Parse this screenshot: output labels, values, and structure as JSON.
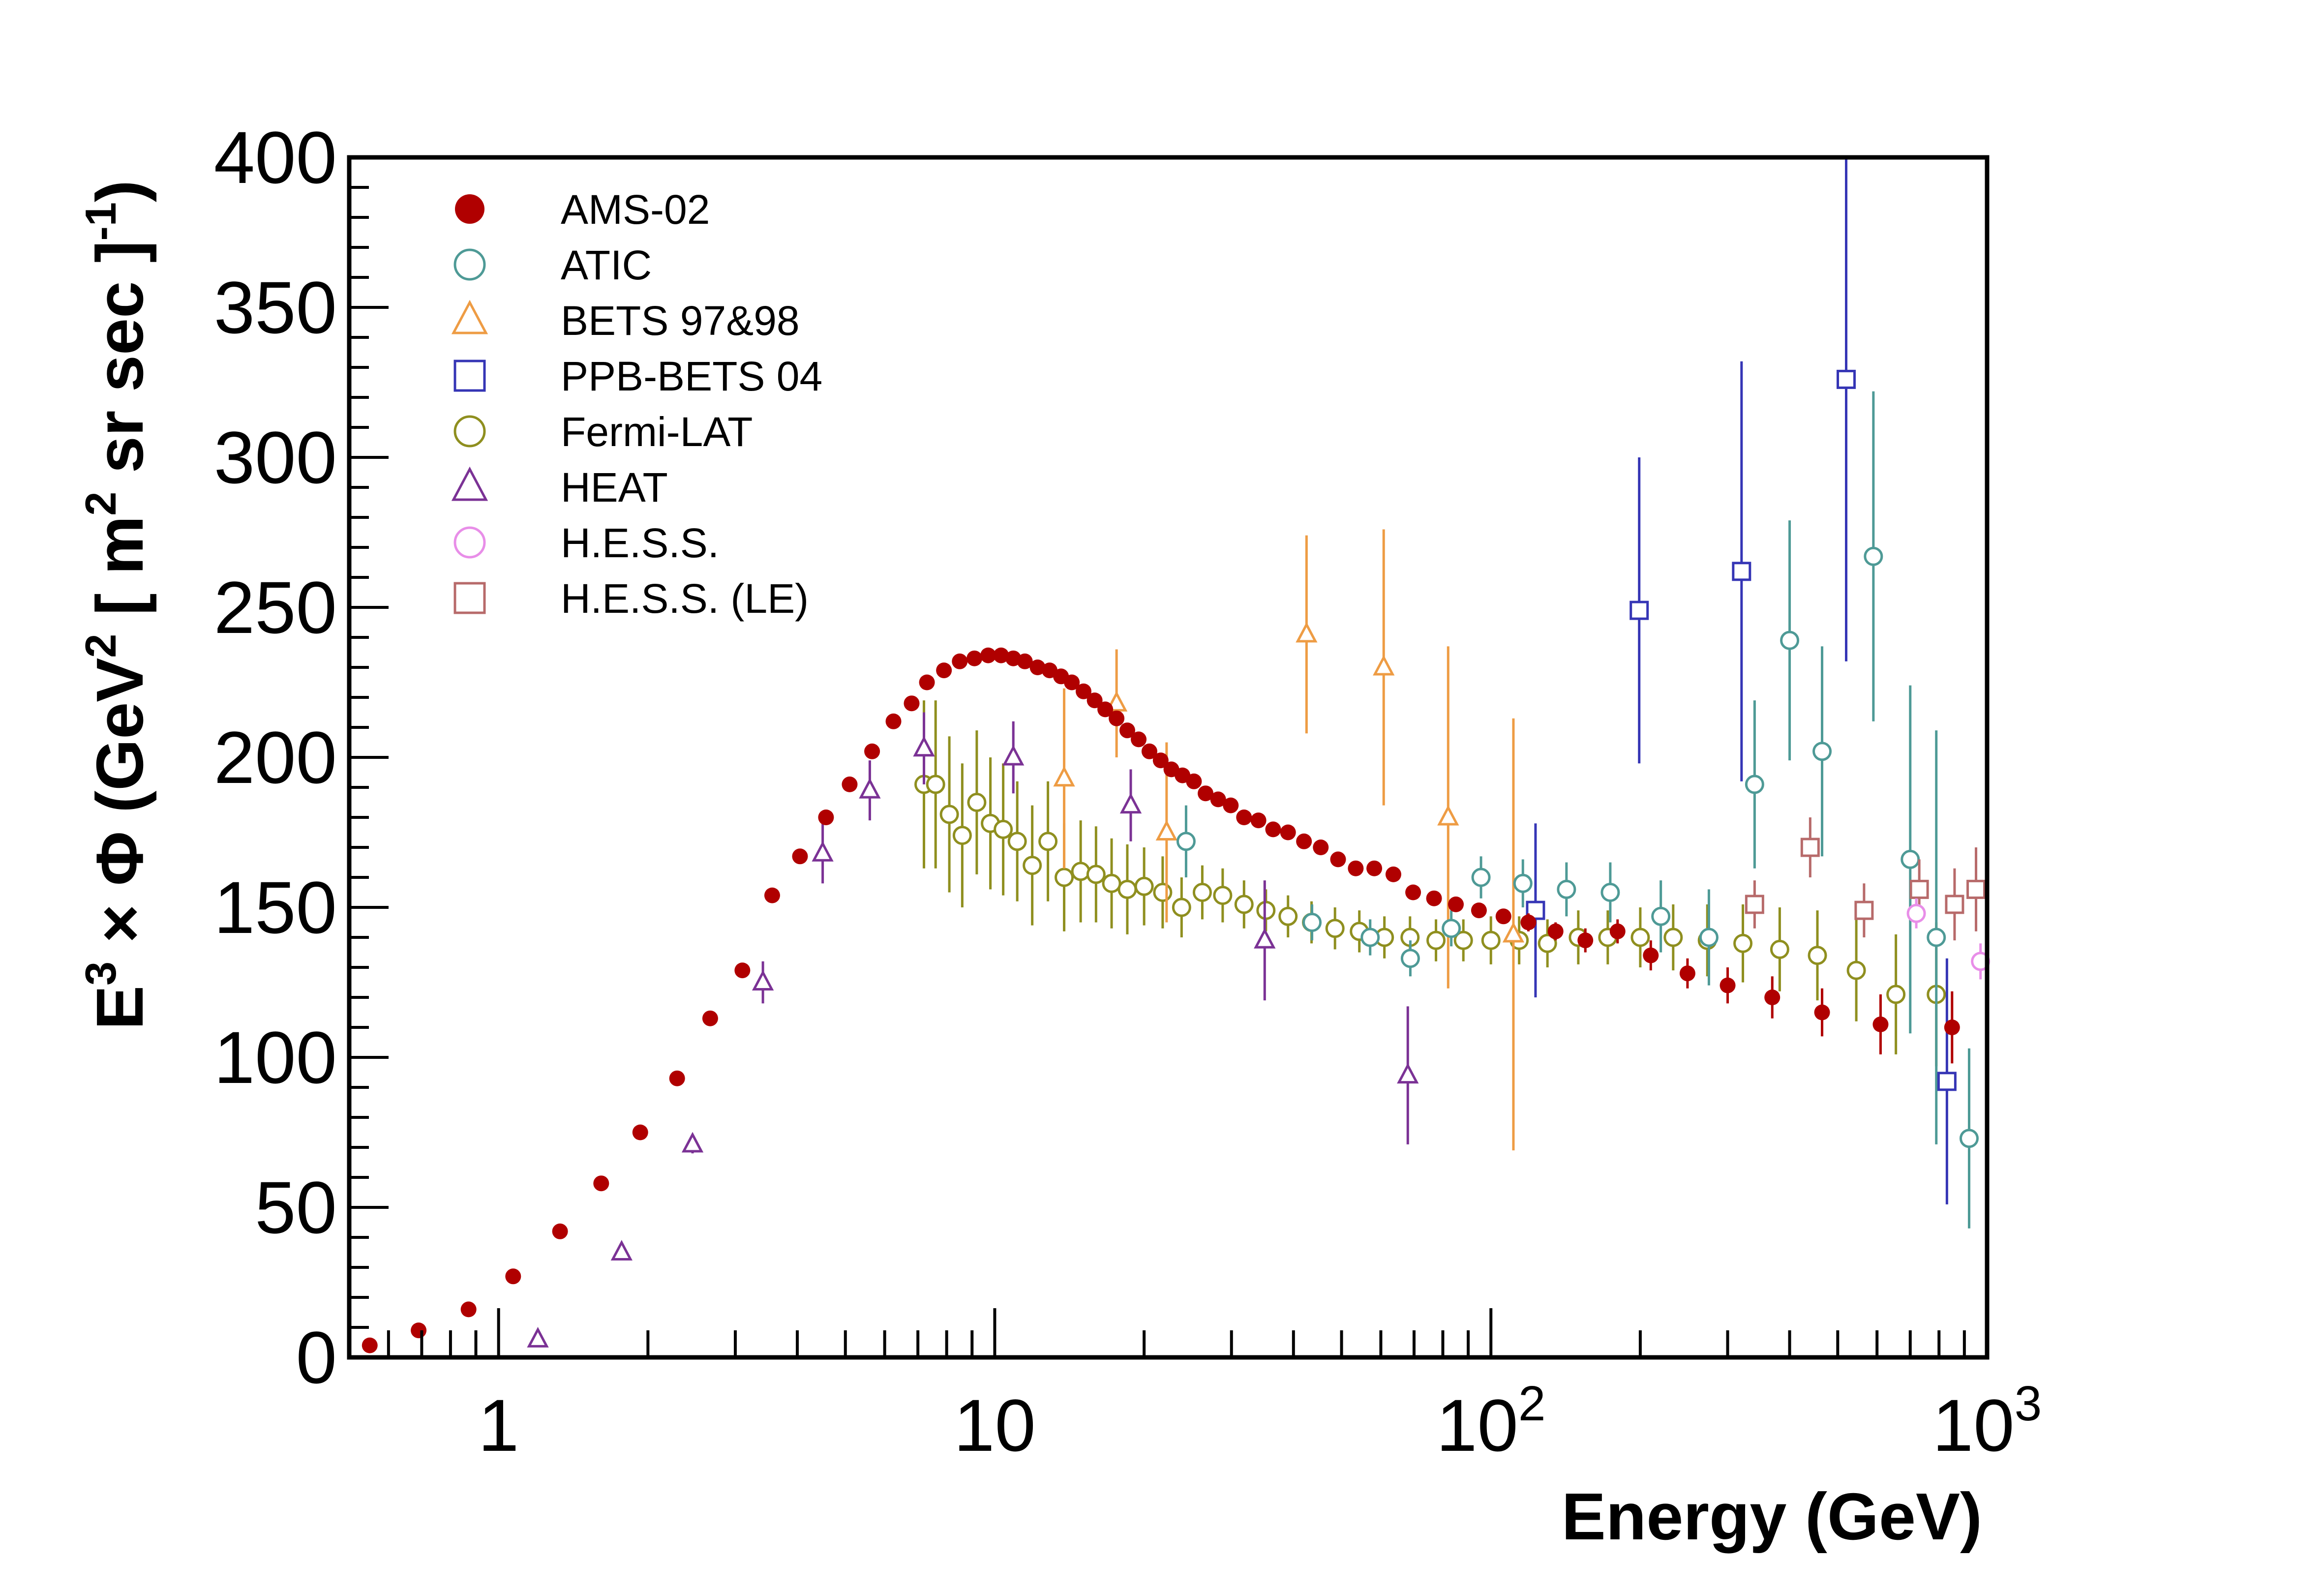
{
  "chart_data": {
    "type": "scatter",
    "xscale": "log",
    "xlim": [
      0.5,
      1000
    ],
    "ylim": [
      0,
      400
    ],
    "xlabel": "Energy (GeV)",
    "ylabel": "E3 × Φ (GeV2 [ m2 sr sec ]-1)",
    "ylabel_parts": {
      "e": "E",
      "three": "3",
      "times_phi": " × Φ (GeV",
      "two_a": "2",
      "bracket": " [ m",
      "two_b": "2",
      "rest": " sr sec ]",
      "minus_one": "-1",
      "close": ")"
    },
    "y_ticks": [
      "0",
      "50",
      "100",
      "150",
      "200",
      "250",
      "300",
      "350",
      "400"
    ],
    "x_ticks": [
      {
        "value": 1,
        "base": "1",
        "exp": ""
      },
      {
        "value": 10,
        "base": "10",
        "exp": ""
      },
      {
        "value": 100,
        "base": "10",
        "exp": "2"
      },
      {
        "value": 1000,
        "base": "10",
        "exp": "3"
      }
    ],
    "legend_position": "top-left",
    "series": [
      {
        "name": "AMS-02",
        "marker": "filled-circle",
        "color": "#b00000",
        "points": [
          [
            0.55,
            4,
            1
          ],
          [
            0.69,
            9,
            1
          ],
          [
            0.87,
            16,
            1
          ],
          [
            1.07,
            27,
            1
          ],
          [
            1.33,
            42,
            1
          ],
          [
            1.61,
            58,
            1
          ],
          [
            1.93,
            75,
            1
          ],
          [
            2.29,
            93,
            1
          ],
          [
            2.67,
            113,
            1
          ],
          [
            3.1,
            129,
            1
          ],
          [
            3.56,
            154,
            1
          ],
          [
            4.05,
            167,
            2
          ],
          [
            4.57,
            180,
            2
          ],
          [
            5.1,
            191,
            2
          ],
          [
            5.66,
            202,
            2
          ],
          [
            6.25,
            212,
            2
          ],
          [
            6.8,
            218,
            2
          ],
          [
            7.3,
            225,
            2
          ],
          [
            7.9,
            229,
            2
          ],
          [
            8.5,
            232,
            2
          ],
          [
            9.1,
            233,
            2
          ],
          [
            9.7,
            234,
            2
          ],
          [
            10.3,
            234,
            2
          ],
          [
            10.9,
            233,
            2
          ],
          [
            11.5,
            232,
            2
          ],
          [
            12.2,
            230,
            2
          ],
          [
            12.9,
            229,
            2
          ],
          [
            13.6,
            227,
            2
          ],
          [
            14.3,
            225,
            2
          ],
          [
            15.1,
            222,
            2
          ],
          [
            15.9,
            219,
            2
          ],
          [
            16.7,
            216,
            2
          ],
          [
            17.6,
            213,
            2
          ],
          [
            18.5,
            209,
            2
          ],
          [
            19.5,
            206,
            2
          ],
          [
            20.5,
            202,
            2
          ],
          [
            21.6,
            199,
            2
          ],
          [
            22.7,
            196,
            2
          ],
          [
            23.9,
            194,
            2
          ],
          [
            25.2,
            192,
            2
          ],
          [
            26.6,
            188,
            2
          ],
          [
            28.2,
            186,
            2
          ],
          [
            29.9,
            184,
            2
          ],
          [
            31.8,
            180,
            2
          ],
          [
            34,
            179,
            2
          ],
          [
            36.4,
            176,
            2
          ],
          [
            39,
            175,
            2
          ],
          [
            42,
            172,
            2
          ],
          [
            45.4,
            170,
            2
          ],
          [
            49.2,
            166,
            2
          ],
          [
            53.4,
            163,
            2
          ],
          [
            58.2,
            163,
            2
          ],
          [
            63.6,
            161,
            2
          ],
          [
            69.7,
            155,
            2
          ],
          [
            76.8,
            153,
            2
          ],
          [
            85,
            151,
            2
          ],
          [
            94.6,
            149,
            2
          ],
          [
            106,
            147,
            2
          ],
          [
            119,
            145,
            3
          ],
          [
            135,
            142,
            3
          ],
          [
            155,
            139,
            4
          ],
          [
            180,
            142,
            4
          ],
          [
            210,
            134,
            5
          ],
          [
            249,
            128,
            5
          ],
          [
            300,
            124,
            6
          ],
          [
            369,
            120,
            7
          ],
          [
            465,
            115,
            8
          ],
          [
            610,
            111,
            10
          ],
          [
            850,
            110,
            12
          ]
        ]
      },
      {
        "name": "ATIC",
        "marker": "open-circle",
        "color": "#4e9a96",
        "points": [
          [
            24.3,
            172,
            12
          ],
          [
            43.6,
            145,
            6
          ],
          [
            57.1,
            140,
            6
          ],
          [
            68.8,
            133,
            6
          ],
          [
            83.2,
            143,
            6
          ],
          [
            95.5,
            160,
            7
          ],
          [
            116,
            158,
            8
          ],
          [
            142,
            156,
            9
          ],
          [
            174,
            155,
            10
          ],
          [
            220,
            147,
            12
          ],
          [
            275,
            140,
            16
          ],
          [
            340,
            191,
            28
          ],
          [
            400,
            239,
            40
          ],
          [
            465,
            202,
            35
          ],
          [
            590,
            267,
            55
          ],
          [
            700,
            166,
            58
          ],
          [
            790,
            140,
            69
          ],
          [
            920,
            73,
            30
          ]
        ]
      },
      {
        "name": "BETS 97&98",
        "marker": "open-triangle",
        "color": "#ee9c44",
        "points": [
          [
            13.8,
            193,
            30
          ],
          [
            17.6,
            218,
            18
          ],
          [
            22.2,
            175,
            30
          ],
          [
            42.5,
            241,
            33
          ],
          [
            60.8,
            230,
            46
          ],
          [
            82,
            180,
            57
          ],
          [
            111,
            141,
            72
          ]
        ]
      },
      {
        "name": "PPB-BETS 04",
        "marker": "open-square",
        "color": "#3535b5",
        "points": [
          [
            123,
            149,
            29
          ],
          [
            199,
            249,
            51
          ],
          [
            320,
            262,
            70
          ],
          [
            520,
            326,
            94
          ],
          [
            830,
            92,
            41
          ]
        ]
      },
      {
        "name": "Fermi-LAT",
        "marker": "open-circle",
        "color": "#8f8f1f",
        "points": [
          [
            7.2,
            191,
            28
          ],
          [
            7.6,
            191,
            28
          ],
          [
            8.1,
            181,
            26
          ],
          [
            8.6,
            174,
            24
          ],
          [
            9.2,
            185,
            24
          ],
          [
            9.8,
            178,
            22
          ],
          [
            10.4,
            176,
            22
          ],
          [
            11.1,
            172,
            20
          ],
          [
            11.9,
            164,
            20
          ],
          [
            12.8,
            172,
            20
          ],
          [
            13.8,
            160,
            18
          ],
          [
            14.9,
            162,
            17
          ],
          [
            16.0,
            161,
            16
          ],
          [
            17.2,
            158,
            15
          ],
          [
            18.5,
            156,
            15
          ],
          [
            20.0,
            157,
            13
          ],
          [
            21.8,
            155,
            12
          ],
          [
            23.8,
            150,
            10
          ],
          [
            26.2,
            155,
            9
          ],
          [
            28.8,
            154,
            9
          ],
          [
            31.8,
            151,
            8
          ],
          [
            35.2,
            149,
            7
          ],
          [
            39,
            147,
            7
          ],
          [
            43.5,
            145,
            7
          ],
          [
            48.5,
            143,
            7
          ],
          [
            54.3,
            142,
            7
          ],
          [
            61,
            140,
            7
          ],
          [
            68.7,
            140,
            7
          ],
          [
            77.5,
            139,
            7
          ],
          [
            88,
            139,
            7
          ],
          [
            100,
            139,
            8
          ],
          [
            114,
            139,
            8
          ],
          [
            130,
            138,
            8
          ],
          [
            150,
            140,
            9
          ],
          [
            172,
            140,
            9
          ],
          [
            200,
            140,
            10
          ],
          [
            233,
            140,
            11
          ],
          [
            273,
            139,
            12
          ],
          [
            322,
            138,
            13
          ],
          [
            382,
            136,
            14
          ],
          [
            455,
            134,
            15
          ],
          [
            545,
            129,
            17
          ],
          [
            655,
            121,
            20
          ],
          [
            790,
            121,
            24
          ]
        ]
      },
      {
        "name": "HEAT",
        "marker": "open-triangle",
        "color": "#7b3295",
        "points": [
          [
            1.2,
            6,
            1
          ],
          [
            1.77,
            35,
            2
          ],
          [
            2.46,
            71,
            3
          ],
          [
            3.41,
            125,
            7
          ],
          [
            4.5,
            168,
            10
          ],
          [
            5.6,
            189,
            10
          ],
          [
            7.2,
            203,
            12
          ],
          [
            10.9,
            200,
            12
          ],
          [
            18.8,
            184,
            12
          ],
          [
            35,
            139,
            20
          ],
          [
            68,
            94,
            23
          ]
        ]
      },
      {
        "name": "H.E.S.S.",
        "marker": "open-circle",
        "color": "#e88ee8",
        "points": [
          [
            720,
            148,
            5
          ],
          [
            970,
            132,
            6
          ]
        ]
      },
      {
        "name": "H.E.S.S. (LE)",
        "marker": "open-square",
        "color": "#b76a6a",
        "points": [
          [
            340,
            151,
            8
          ],
          [
            440,
            170,
            10
          ],
          [
            565,
            149,
            9
          ],
          [
            730,
            156,
            10
          ],
          [
            860,
            151,
            12
          ],
          [
            950,
            156,
            14
          ]
        ]
      }
    ]
  }
}
